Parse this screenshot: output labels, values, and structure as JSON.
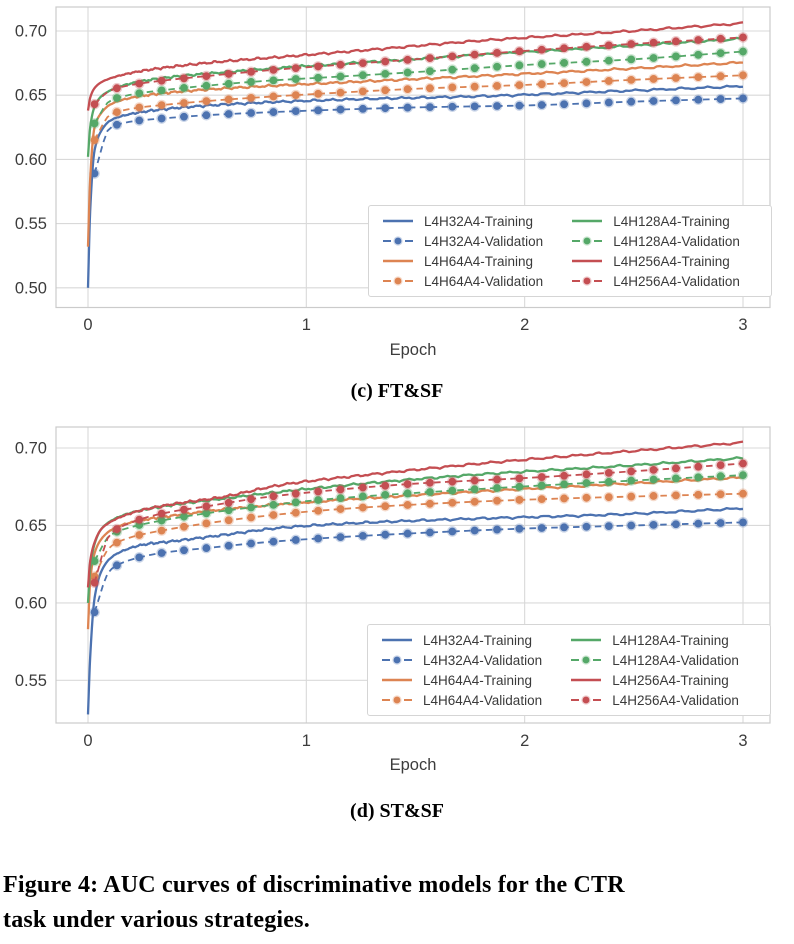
{
  "figure": {
    "caption_line1": "Figure 4: AUC curves of discriminative models for the CTR",
    "caption_line2": "task under various strategies."
  },
  "palette": {
    "blue": "#4C72B0",
    "orange": "#DD8452",
    "green": "#55A868",
    "red": "#C44E52"
  },
  "chart_data": [
    {
      "type": "line",
      "subcaption": "(c) FT&SF",
      "xlabel": "Epoch",
      "x_ticks": [
        "0",
        "1",
        "2",
        "3"
      ],
      "y_ticks": [
        "0.70",
        "0.65",
        "0.60",
        "0.55",
        "0.50"
      ],
      "xlim": [
        0,
        3
      ],
      "ylim": [
        0.485,
        0.719
      ],
      "grid": true,
      "legend_position": "lower right",
      "markers": {
        "start": 0.03,
        "end": 3.0,
        "count": 30
      },
      "series": [
        {
          "label": "L4H32A4-Training",
          "color": "#4C72B0",
          "style": "solid",
          "points": [
            [
              0,
              0.5
            ],
            [
              0.01,
              0.56
            ],
            [
              0.03,
              0.607
            ],
            [
              0.06,
              0.622
            ],
            [
              0.1,
              0.63
            ],
            [
              0.15,
              0.6335
            ],
            [
              0.25,
              0.637
            ],
            [
              0.4,
              0.64
            ],
            [
              0.6,
              0.6425
            ],
            [
              0.9,
              0.645
            ],
            [
              1.3,
              0.6472
            ],
            [
              1.8,
              0.6492
            ],
            [
              2.4,
              0.653
            ],
            [
              3,
              0.657
            ]
          ]
        },
        {
          "label": "L4H32A4-Validation",
          "color": "#4C72B0",
          "style": "dashed-dot",
          "points": [
            [
              0.03,
              0.589
            ],
            [
              0.1,
              0.6245
            ],
            [
              0.2,
              0.6295
            ],
            [
              0.35,
              0.632
            ],
            [
              0.55,
              0.6345
            ],
            [
              0.8,
              0.6365
            ],
            [
              1.1,
              0.6385
            ],
            [
              1.5,
              0.6405
            ],
            [
              2,
              0.642
            ],
            [
              2.5,
              0.645
            ],
            [
              3,
              0.6475
            ]
          ]
        },
        {
          "label": "L4H64A4-Training",
          "color": "#DD8452",
          "style": "solid",
          "points": [
            [
              0,
              0.532
            ],
            [
              0.01,
              0.585
            ],
            [
              0.03,
              0.625
            ],
            [
              0.06,
              0.636
            ],
            [
              0.1,
              0.6425
            ],
            [
              0.15,
              0.646
            ],
            [
              0.25,
              0.6495
            ],
            [
              0.4,
              0.6525
            ],
            [
              0.6,
              0.655
            ],
            [
              0.9,
              0.6578
            ],
            [
              1.3,
              0.661
            ],
            [
              1.8,
              0.665
            ],
            [
              2.4,
              0.67
            ],
            [
              3,
              0.6755
            ]
          ]
        },
        {
          "label": "L4H64A4-Validation",
          "color": "#DD8452",
          "style": "dashed-dot",
          "points": [
            [
              0.03,
              0.615
            ],
            [
              0.1,
              0.6345
            ],
            [
              0.2,
              0.6395
            ],
            [
              0.35,
              0.6425
            ],
            [
              0.55,
              0.6455
            ],
            [
              0.8,
              0.6485
            ],
            [
              1.1,
              0.6515
            ],
            [
              1.5,
              0.655
            ],
            [
              2,
              0.658
            ],
            [
              2.5,
              0.662
            ],
            [
              3,
              0.6655
            ]
          ]
        },
        {
          "label": "L4H128A4-Training",
          "color": "#55A868",
          "style": "solid",
          "points": [
            [
              0,
              0.602
            ],
            [
              0.01,
              0.625
            ],
            [
              0.03,
              0.641
            ],
            [
              0.06,
              0.649
            ],
            [
              0.1,
              0.6535
            ],
            [
              0.15,
              0.657
            ],
            [
              0.25,
              0.661
            ],
            [
              0.4,
              0.6645
            ],
            [
              0.6,
              0.6675
            ],
            [
              0.9,
              0.6715
            ],
            [
              1.3,
              0.676
            ],
            [
              1.8,
              0.6815
            ],
            [
              2.4,
              0.6875
            ],
            [
              3,
              0.694
            ]
          ]
        },
        {
          "label": "L4H128A4-Validation",
          "color": "#55A868",
          "style": "dashed-dot",
          "points": [
            [
              0.03,
              0.628
            ],
            [
              0.1,
              0.6455
            ],
            [
              0.2,
              0.6505
            ],
            [
              0.35,
              0.654
            ],
            [
              0.55,
              0.6575
            ],
            [
              0.8,
              0.661
            ],
            [
              1.1,
              0.664
            ],
            [
              1.5,
              0.668
            ],
            [
              2,
              0.6735
            ],
            [
              2.5,
              0.678
            ],
            [
              3,
              0.684
            ]
          ]
        },
        {
          "label": "L4H256A4-Training",
          "color": "#C44E52",
          "style": "solid",
          "points": [
            [
              0,
              0.638
            ],
            [
              0.01,
              0.648
            ],
            [
              0.03,
              0.6555
            ],
            [
              0.06,
              0.66
            ],
            [
              0.1,
              0.663
            ],
            [
              0.15,
              0.6655
            ],
            [
              0.25,
              0.669
            ],
            [
              0.4,
              0.6725
            ],
            [
              0.6,
              0.676
            ],
            [
              0.9,
              0.68
            ],
            [
              1.3,
              0.6855
            ],
            [
              1.8,
              0.6925
            ],
            [
              2.4,
              0.699
            ],
            [
              3,
              0.706
            ]
          ]
        },
        {
          "label": "L4H256A4-Validation",
          "color": "#C44E52",
          "style": "dashed-dot",
          "points": [
            [
              0.03,
              0.643
            ],
            [
              0.1,
              0.6535
            ],
            [
              0.2,
              0.658
            ],
            [
              0.35,
              0.6615
            ],
            [
              0.55,
              0.665
            ],
            [
              0.8,
              0.669
            ],
            [
              1.1,
              0.673
            ],
            [
              1.5,
              0.678
            ],
            [
              2,
              0.6845
            ],
            [
              2.5,
              0.69
            ],
            [
              3,
              0.695
            ]
          ]
        }
      ]
    },
    {
      "type": "line",
      "subcaption": "(d) ST&SF",
      "xlabel": "Epoch",
      "x_ticks": [
        "0",
        "1",
        "2",
        "3"
      ],
      "y_ticks": [
        "0.70",
        "0.65",
        "0.60",
        "0.55"
      ],
      "xlim": [
        0,
        3
      ],
      "ylim": [
        0.522,
        0.714
      ],
      "grid": true,
      "legend_position": "lower right",
      "markers": {
        "start": 0.03,
        "end": 3.0,
        "count": 30
      },
      "series": [
        {
          "label": "L4H32A4-Training",
          "color": "#4C72B0",
          "style": "solid",
          "points": [
            [
              0,
              0.528
            ],
            [
              0.01,
              0.565
            ],
            [
              0.03,
              0.603
            ],
            [
              0.06,
              0.62
            ],
            [
              0.1,
              0.6285
            ],
            [
              0.15,
              0.633
            ],
            [
              0.25,
              0.6375
            ],
            [
              0.4,
              0.64
            ],
            [
              0.6,
              0.6435
            ],
            [
              0.9,
              0.6487
            ],
            [
              1.3,
              0.652
            ],
            [
              1.8,
              0.6545
            ],
            [
              2.4,
              0.657
            ],
            [
              3,
              0.661
            ]
          ]
        },
        {
          "label": "L4H32A4-Validation",
          "color": "#4C72B0",
          "style": "dashed-dot",
          "points": [
            [
              0.03,
              0.594
            ],
            [
              0.1,
              0.621
            ],
            [
              0.2,
              0.628
            ],
            [
              0.35,
              0.6325
            ],
            [
              0.55,
              0.6355
            ],
            [
              0.8,
              0.639
            ],
            [
              1.1,
              0.642
            ],
            [
              1.5,
              0.645
            ],
            [
              2,
              0.648
            ],
            [
              2.5,
              0.65
            ],
            [
              3,
              0.652
            ]
          ]
        },
        {
          "label": "L4H64A4-Training",
          "color": "#DD8452",
          "style": "solid",
          "points": [
            [
              0,
              0.583
            ],
            [
              0.01,
              0.614
            ],
            [
              0.03,
              0.632
            ],
            [
              0.06,
              0.641
            ],
            [
              0.1,
              0.6465
            ],
            [
              0.15,
              0.65
            ],
            [
              0.25,
              0.6535
            ],
            [
              0.4,
              0.6565
            ],
            [
              0.6,
              0.66
            ],
            [
              0.9,
              0.6638
            ],
            [
              1.3,
              0.6678
            ],
            [
              1.8,
              0.672
            ],
            [
              2.4,
              0.6765
            ],
            [
              3,
              0.681
            ]
          ]
        },
        {
          "label": "L4H64A4-Validation",
          "color": "#DD8452",
          "style": "dashed-dot",
          "points": [
            [
              0.03,
              0.617
            ],
            [
              0.1,
              0.636
            ],
            [
              0.2,
              0.6425
            ],
            [
              0.35,
              0.647
            ],
            [
              0.55,
              0.6515
            ],
            [
              0.8,
              0.656
            ],
            [
              1.1,
              0.66
            ],
            [
              1.5,
              0.6635
            ],
            [
              2,
              0.6666
            ],
            [
              2.5,
              0.6687
            ],
            [
              3,
              0.6705
            ]
          ]
        },
        {
          "label": "L4H128A4-Training",
          "color": "#55A868",
          "style": "solid",
          "points": [
            [
              0,
              0.6
            ],
            [
              0.01,
              0.622
            ],
            [
              0.03,
              0.638
            ],
            [
              0.06,
              0.6475
            ],
            [
              0.1,
              0.6525
            ],
            [
              0.15,
              0.656
            ],
            [
              0.25,
              0.66
            ],
            [
              0.4,
              0.6635
            ],
            [
              0.6,
              0.667
            ],
            [
              0.9,
              0.672
            ],
            [
              1.3,
              0.6775
            ],
            [
              1.8,
              0.683
            ],
            [
              2.4,
              0.688
            ],
            [
              3,
              0.6935
            ]
          ]
        },
        {
          "label": "L4H128A4-Validation",
          "color": "#55A868",
          "style": "dashed-dot",
          "points": [
            [
              0.03,
              0.627
            ],
            [
              0.1,
              0.6435
            ],
            [
              0.2,
              0.649
            ],
            [
              0.35,
              0.6535
            ],
            [
              0.55,
              0.658
            ],
            [
              0.8,
              0.6625
            ],
            [
              1.1,
              0.667
            ],
            [
              1.5,
              0.671
            ],
            [
              2,
              0.6752
            ],
            [
              2.5,
              0.679
            ],
            [
              3,
              0.6825
            ]
          ]
        },
        {
          "label": "L4H256A4-Training",
          "color": "#C44E52",
          "style": "solid",
          "points": [
            [
              0,
              0.61
            ],
            [
              0.01,
              0.627
            ],
            [
              0.03,
              0.639
            ],
            [
              0.06,
              0.6475
            ],
            [
              0.1,
              0.652
            ],
            [
              0.15,
              0.6555
            ],
            [
              0.25,
              0.66
            ],
            [
              0.4,
              0.664
            ],
            [
              0.6,
              0.668
            ],
            [
              0.9,
              0.6765
            ],
            [
              1.3,
              0.683
            ],
            [
              1.8,
              0.69
            ],
            [
              2.4,
              0.697
            ],
            [
              3,
              0.7035
            ]
          ]
        },
        {
          "label": "L4H256A4-Validation",
          "color": "#C44E52",
          "style": "dashed-dot",
          "points": [
            [
              0.03,
              0.613
            ],
            [
              0.1,
              0.644
            ],
            [
              0.2,
              0.652
            ],
            [
              0.35,
              0.658
            ],
            [
              0.55,
              0.6625
            ],
            [
              0.8,
              0.668
            ],
            [
              1.1,
              0.6725
            ],
            [
              1.5,
              0.677
            ],
            [
              2,
              0.6806
            ],
            [
              2.5,
              0.685
            ],
            [
              3,
              0.69
            ]
          ]
        }
      ]
    }
  ]
}
